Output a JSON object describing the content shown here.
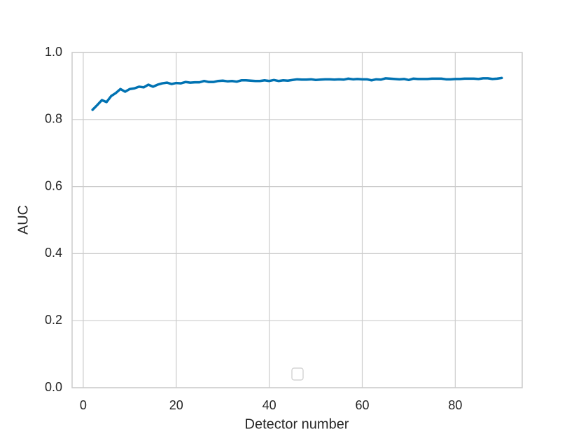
{
  "chart_data": {
    "type": "line",
    "xlabel": "Detector number",
    "ylabel": "AUC",
    "x": [
      2,
      3,
      4,
      5,
      6,
      7,
      8,
      9,
      10,
      11,
      12,
      13,
      14,
      15,
      16,
      17,
      18,
      19,
      20,
      21,
      22,
      23,
      24,
      25,
      26,
      27,
      28,
      29,
      30,
      31,
      32,
      33,
      34,
      35,
      36,
      37,
      38,
      39,
      40,
      41,
      42,
      43,
      44,
      45,
      46,
      47,
      48,
      49,
      50,
      51,
      52,
      53,
      54,
      55,
      56,
      57,
      58,
      59,
      60,
      61,
      62,
      63,
      64,
      65,
      66,
      67,
      68,
      69,
      70,
      71,
      72,
      73,
      74,
      75,
      76,
      77,
      78,
      79,
      80,
      81,
      82,
      83,
      84,
      85,
      86,
      87,
      88,
      89,
      90
    ],
    "series": [
      {
        "color": "#0072b2",
        "values": [
          0.829,
          0.843,
          0.858,
          0.852,
          0.87,
          0.879,
          0.891,
          0.883,
          0.891,
          0.893,
          0.898,
          0.896,
          0.904,
          0.898,
          0.904,
          0.908,
          0.91,
          0.906,
          0.909,
          0.908,
          0.912,
          0.91,
          0.911,
          0.911,
          0.915,
          0.912,
          0.912,
          0.915,
          0.916,
          0.914,
          0.915,
          0.913,
          0.917,
          0.917,
          0.916,
          0.915,
          0.915,
          0.917,
          0.915,
          0.918,
          0.915,
          0.917,
          0.916,
          0.918,
          0.92,
          0.919,
          0.919,
          0.92,
          0.918,
          0.919,
          0.92,
          0.92,
          0.919,
          0.92,
          0.919,
          0.922,
          0.92,
          0.921,
          0.92,
          0.92,
          0.917,
          0.92,
          0.919,
          0.923,
          0.922,
          0.921,
          0.92,
          0.921,
          0.918,
          0.922,
          0.921,
          0.921,
          0.921,
          0.922,
          0.922,
          0.922,
          0.92,
          0.92,
          0.921,
          0.921,
          0.922,
          0.922,
          0.922,
          0.921,
          0.923,
          0.923,
          0.921,
          0.922,
          0.924
        ]
      }
    ],
    "xlim": [
      -2.4,
      94.4
    ],
    "xticks": [
      0,
      20,
      40,
      60,
      80
    ],
    "ylim": [
      0,
      1
    ],
    "yticks": [
      {
        "value": 0,
        "label": "0.0"
      },
      0.2,
      0.4,
      0.6,
      0.8,
      {
        "value": 1,
        "label": "1.0"
      }
    ],
    "grid": true
  }
}
